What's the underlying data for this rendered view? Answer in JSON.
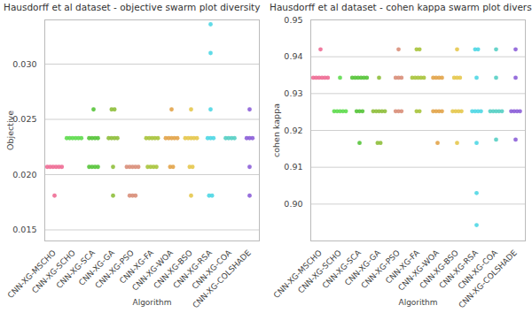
{
  "chart_data": [
    {
      "type": "swarm",
      "title": "Hausdorff et al dataset -  objective swarm plot diversity",
      "x_label": "Algorithm",
      "y_label": "Objective",
      "categories": [
        "CNN-XG-MSCHO",
        "CNN-XG-SCHO",
        "CNN-XG-SCA",
        "CNN-XG-GA",
        "CNN-XG-PSO",
        "CNN-XG-FA",
        "CNN-XG-WOA",
        "CNN-XG-BSO",
        "CNN-XG-RSA",
        "CNN-XG-COA",
        "CNN-XG-COLSHADE"
      ],
      "colors": [
        "#ee6d95",
        "#5fdc4f",
        "#56c43a",
        "#8fbf3c",
        "#d98f7a",
        "#a8c43d",
        "#e2a44a",
        "#e5c84e",
        "#4fd7e4",
        "#57cfc4",
        "#8c5fd8"
      ],
      "values": [
        [
          0.0207,
          0.0207,
          0.0207,
          0.0207,
          0.0207,
          0.0207,
          0.0181
        ],
        [
          0.0233,
          0.0233,
          0.0233,
          0.0233,
          0.0233,
          0.0233
        ],
        [
          0.0259,
          0.0233,
          0.0233,
          0.0233,
          0.0233,
          0.0207,
          0.0207,
          0.0207,
          0.0207
        ],
        [
          0.0259,
          0.0259,
          0.0233,
          0.0233,
          0.0233,
          0.0233,
          0.0207,
          0.0181
        ],
        [
          0.0207,
          0.0207,
          0.0207,
          0.0207,
          0.0207,
          0.0181,
          0.0181,
          0.0181
        ],
        [
          0.0233,
          0.0233,
          0.0233,
          0.0233,
          0.0233,
          0.0207,
          0.0207,
          0.0207,
          0.0207
        ],
        [
          0.0259,
          0.0233,
          0.0233,
          0.0233,
          0.0233,
          0.0233,
          0.0207,
          0.0207
        ],
        [
          0.0259,
          0.0233,
          0.0233,
          0.0233,
          0.0233,
          0.0233,
          0.0207,
          0.0207,
          0.0181
        ],
        [
          0.0336,
          0.031,
          0.0259,
          0.0233,
          0.0233,
          0.0233,
          0.0181,
          0.0181
        ],
        [
          0.0233,
          0.0233,
          0.0233,
          0.0233
        ],
        [
          0.0259,
          0.0233,
          0.0233,
          0.0233,
          0.0207,
          0.0181
        ]
      ],
      "ylim": [
        0.014,
        0.034
      ],
      "yticks": [
        0.015,
        {
          "value": 0.02,
          "label": "0.020"
        },
        0.025,
        {
          "value": 0.03,
          "label": "0.030"
        }
      ],
      "grid": true
    },
    {
      "type": "swarm",
      "title": "Hausdorff et al dataset -  cohen kappa swarm plot diversity",
      "x_label": "Algorithm",
      "y_label": "cohen kappa",
      "categories": [
        "CNN-XG-MSCHO",
        "CNN-XG-SCHO",
        "CNN-XG-SCA",
        "CNN-XG-GA",
        "CNN-XG-PSO",
        "CNN-XG-FA",
        "CNN-XG-WOA",
        "CNN-XG-BSO",
        "CNN-XG-RSA",
        "CNN-XG-COA",
        "CNN-XG-COLSHADE"
      ],
      "colors": [
        "#ee6d95",
        "#5fdc4f",
        "#56c43a",
        "#8fbf3c",
        "#d98f7a",
        "#a8c43d",
        "#e2a44a",
        "#e5c84e",
        "#4fd7e4",
        "#57cfc4",
        "#8c5fd8"
      ],
      "values": [
        [
          0.942,
          0.9343,
          0.9343,
          0.9343,
          0.9343,
          0.9343,
          0.9343
        ],
        [
          0.9343,
          0.9252,
          0.9252,
          0.9252,
          0.9252,
          0.9252
        ],
        [
          0.9343,
          0.9343,
          0.9343,
          0.9343,
          0.9343,
          0.9343,
          0.9252,
          0.9252,
          0.9252,
          0.9166
        ],
        [
          0.9343,
          0.9252,
          0.9252,
          0.9252,
          0.9252,
          0.9252,
          0.9166,
          0.9166
        ],
        [
          0.942,
          0.9343,
          0.9343,
          0.9343,
          0.9252,
          0.9252,
          0.9252
        ],
        [
          0.942,
          0.942,
          0.9343,
          0.9343,
          0.9343,
          0.9343,
          0.9343,
          0.9252,
          0.9252
        ],
        [
          0.9343,
          0.9343,
          0.9343,
          0.9343,
          0.9252,
          0.9252,
          0.9252,
          0.9252,
          0.9166
        ],
        [
          0.942,
          0.9343,
          0.9343,
          0.9343,
          0.9252,
          0.9252,
          0.9252,
          0.9252,
          0.9166
        ],
        [
          0.942,
          0.942,
          0.9343,
          0.9252,
          0.9252,
          0.9252,
          0.9252,
          0.9166,
          0.903,
          0.8943
        ],
        [
          0.942,
          0.9343,
          0.9252,
          0.9252,
          0.9252,
          0.9252,
          0.9252,
          0.9175
        ],
        [
          0.942,
          0.9343,
          0.9252,
          0.9252,
          0.9252,
          0.9252,
          0.9175
        ]
      ],
      "ylim": [
        0.89,
        0.95
      ],
      "yticks": [
        {
          "value": 0.9,
          "label": "0.90"
        },
        0.91,
        0.92,
        0.93,
        0.94,
        0.95
      ],
      "grid": true
    }
  ]
}
